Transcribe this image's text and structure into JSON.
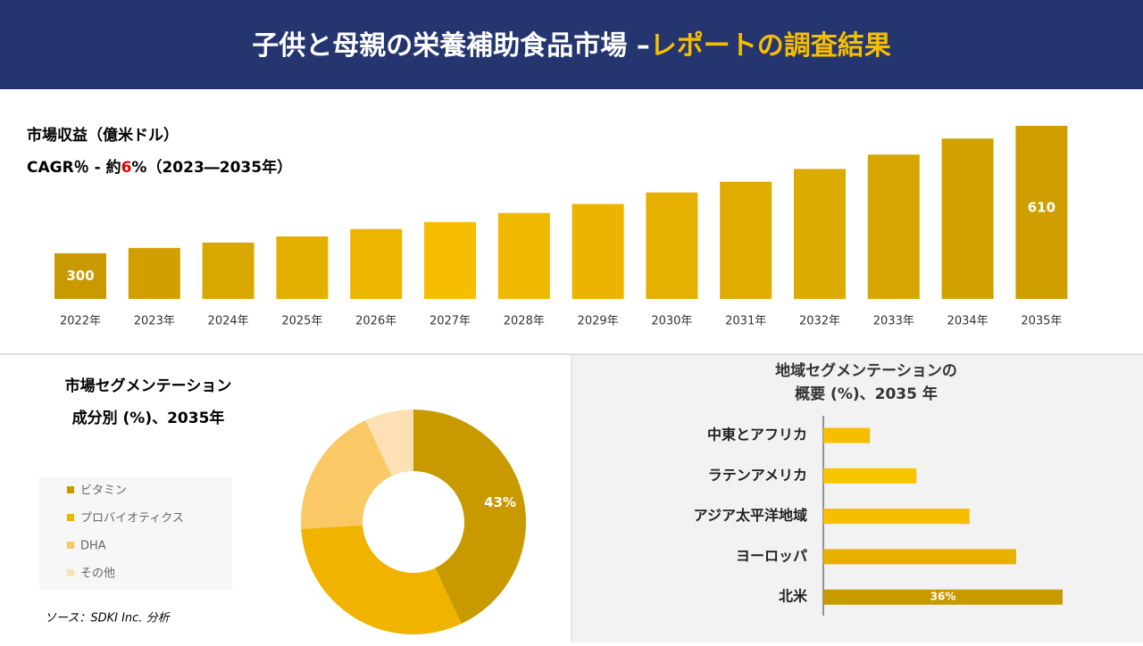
{
  "header": {
    "title": "子供と母親の栄養補助食品市場 –",
    "title_highlight": "レポートの調査結果"
  },
  "chart_data": [
    {
      "type": "bar",
      "title": "市場収益（億米ドル）",
      "subtitle": [
        "CAGR％ - 約",
        "6",
        "%（2023―2035年）"
      ],
      "categories": [
        "2022年",
        "2023年",
        "2024年",
        "2025年",
        "2026年",
        "2027年",
        "2028年",
        "2029年",
        "2030年",
        "2031年",
        "2032年",
        "2033年",
        "2034年",
        "2035年"
      ],
      "values": [
        300,
        313,
        326,
        341,
        359,
        376,
        398,
        420,
        448,
        474,
        505,
        540,
        579,
        610
      ],
      "colors": [
        "#c89a00",
        "#d1a000",
        "#d9a800",
        "#e3b000",
        "#ecb600",
        "#f7be00",
        "#efb800",
        "#eab400",
        "#e5b000",
        "#e0ac00",
        "#dcaa00",
        "#d7a600",
        "#d2a200",
        "#cf9f00"
      ],
      "ylim": [
        189,
        610
      ]
    },
    {
      "type": "donut",
      "title": [
        "市場セグメンテーション",
        "成分別 (%)、2035年"
      ],
      "categories": [
        "ビタミン",
        "プロバイオティクス",
        "DHA",
        "その他"
      ],
      "values": [
        43,
        31,
        19,
        7
      ],
      "value_labels": [
        "43%",
        null,
        null,
        null
      ],
      "colors": [
        "#c89a00",
        "#f0b400",
        "#fac864",
        "#fde0b4"
      ]
    },
    {
      "type": "hbar",
      "title": [
        "地域セグメンテーションの",
        "概要 (%)、2035 年"
      ],
      "categories": [
        "中東とアフリカ",
        "ラテンアメリカ",
        "アジア太平洋地域",
        "ヨーロッパ",
        "北米"
      ],
      "values": [
        7,
        14,
        22,
        29,
        36
      ],
      "value_labels": [
        null,
        null,
        null,
        null,
        "36%"
      ],
      "colors": [
        "#f7be00",
        "#f7c400",
        "#f7be00",
        "#e8b000",
        "#c89a00"
      ]
    }
  ],
  "source": "ソース：SDKI Inc. 分析"
}
